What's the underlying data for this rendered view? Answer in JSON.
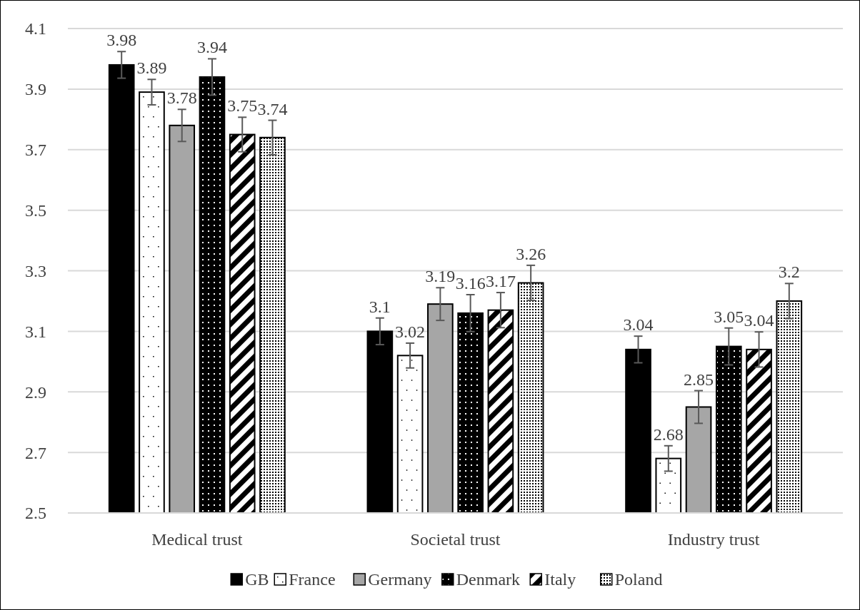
{
  "chart_data": {
    "type": "bar",
    "categories": [
      "Medical trust",
      "Societal trust",
      "Industry trust"
    ],
    "series": [
      {
        "name": "GB",
        "color": "#000000",
        "values": [
          3.98,
          3.1,
          3.04
        ],
        "errors": [
          0.044,
          0.044,
          0.044
        ]
      },
      {
        "name": "France",
        "color": "#ffffff",
        "values": [
          3.89,
          3.02,
          2.68
        ],
        "errors": [
          0.042,
          0.041,
          0.042
        ]
      },
      {
        "name": "Germany",
        "color": "#a6a6a6",
        "values": [
          3.78,
          3.19,
          2.85
        ],
        "errors": [
          0.053,
          0.054,
          0.054
        ]
      },
      {
        "name": "Denmark",
        "color": "#000000",
        "values": [
          3.94,
          3.16,
          3.05
        ],
        "errors": [
          0.06,
          0.061,
          0.061
        ]
      },
      {
        "name": "Italy",
        "color": "#000000",
        "values": [
          3.75,
          3.17,
          3.04
        ],
        "errors": [
          0.057,
          0.058,
          0.058
        ]
      },
      {
        "name": "Poland",
        "color": "#000000",
        "values": [
          3.74,
          3.26,
          3.2
        ],
        "errors": [
          0.057,
          0.058,
          0.058
        ]
      }
    ],
    "ylim": [
      2.5,
      4.1
    ],
    "yticks": [
      2.5,
      2.7,
      2.9,
      3.1,
      3.3,
      3.5,
      3.7,
      3.9,
      4.1
    ],
    "grid": "y",
    "legend": "bottom",
    "data_labels": true
  }
}
